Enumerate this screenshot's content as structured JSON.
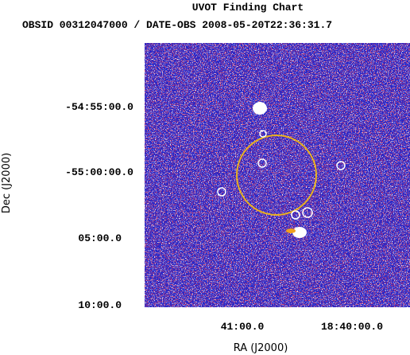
{
  "header": {
    "title": "UVOT Finding Chart",
    "subtitle": "OBSID 00312047000 / DATE-OBS 2008-05-20T22:36:31.7"
  },
  "axes": {
    "x": {
      "label": "RA (J2000)",
      "ticks": [
        "41:00.0",
        "18:40:00.0"
      ]
    },
    "y": {
      "label": "Dec (J2000)",
      "ticks": [
        "-54:55:00.0",
        "-55:00:00.0",
        "05:00.0",
        "10:00.0"
      ]
    }
  }
}
